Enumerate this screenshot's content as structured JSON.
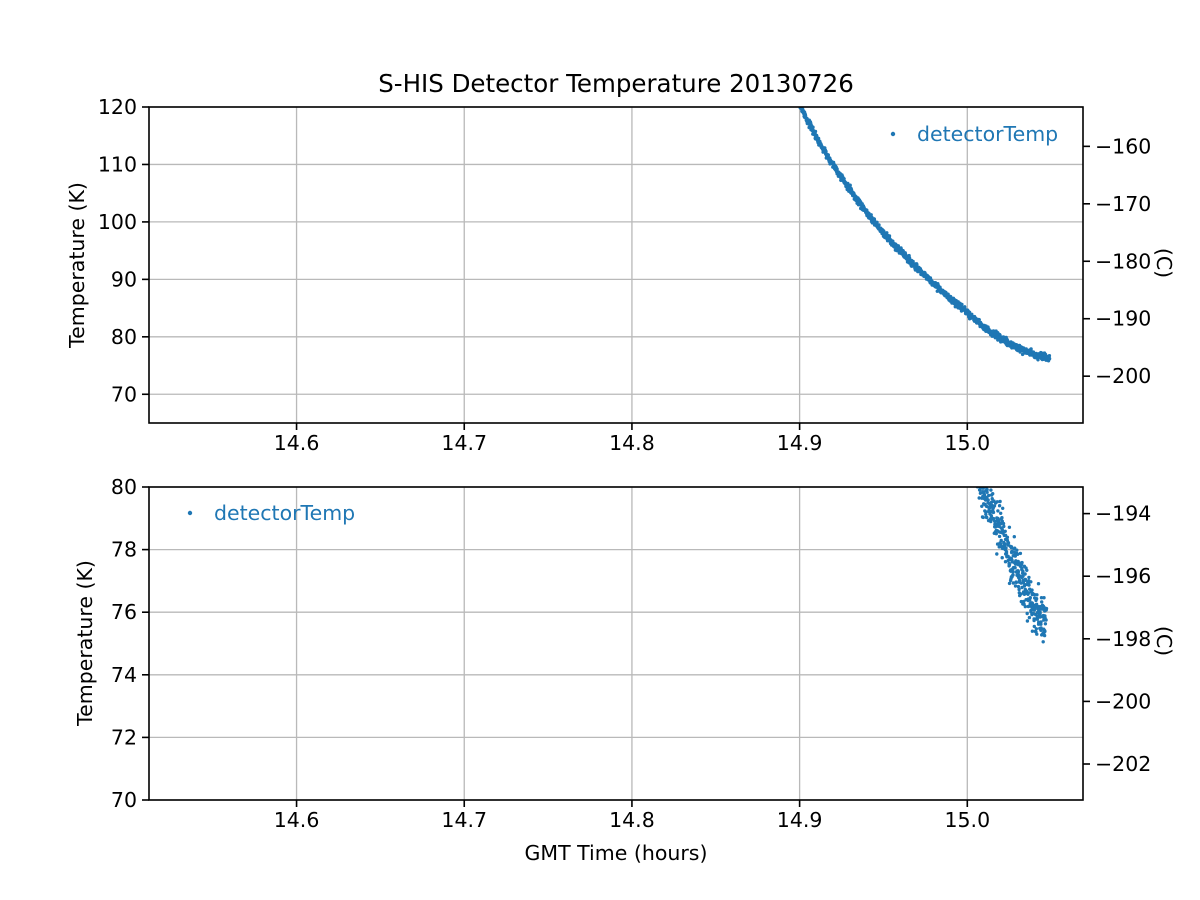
{
  "style": {
    "accent_color": "#1f77b4",
    "grid_color": "#b9b9b9",
    "spine_color": "#000000",
    "text_color": "#000000",
    "background": "#ffffff"
  },
  "chart_data": [
    {
      "type": "scatter",
      "position": "top",
      "title": "S-HIS Detector Temperature 20130726",
      "xlabel": "",
      "ylabel": "Temperature (K)",
      "ylabel_right": "(C)",
      "xlim": [
        14.512,
        15.069
      ],
      "ylim": [
        65,
        120
      ],
      "ylim_right_offset": -273.15,
      "grid": true,
      "xticks": [
        14.6,
        14.7,
        14.8,
        14.9,
        15.0
      ],
      "xtick_labels": [
        "14.6",
        "14.7",
        "14.8",
        "14.9",
        "15.0"
      ],
      "yticks": [
        70,
        80,
        90,
        100,
        110,
        120
      ],
      "ytick_labels": [
        "70",
        "80",
        "90",
        "100",
        "110",
        "120"
      ],
      "yticks_right": [
        -160,
        -170,
        -180,
        -190,
        -200
      ],
      "ytick_right_labels": [
        "−160",
        "−170",
        "−180",
        "−190",
        "−200"
      ],
      "legend": {
        "label": "detectorTemp",
        "loc": "upper right"
      },
      "series": [
        {
          "name": "detectorTemp",
          "color": "#1f77b4",
          "marker": "point",
          "n_points": 1400,
          "noise_k": 0.28,
          "t_range": [
            14.893,
            15.049
          ],
          "trend": [
            [
              14.893,
              124.5
            ],
            [
              14.9,
              120.5
            ],
            [
              14.905,
              117.5
            ],
            [
              14.91,
              114.8
            ],
            [
              14.915,
              112.2
            ],
            [
              14.92,
              110.0
            ],
            [
              14.927,
              106.9
            ],
            [
              14.935,
              103.6
            ],
            [
              14.943,
              100.5
            ],
            [
              14.951,
              97.7
            ],
            [
              14.96,
              95.0
            ],
            [
              14.97,
              92.0
            ],
            [
              14.98,
              89.2
            ],
            [
              14.99,
              86.6
            ],
            [
              15.0,
              84.2
            ],
            [
              15.01,
              81.6
            ],
            [
              15.02,
              79.7
            ],
            [
              15.03,
              78.1
            ],
            [
              15.04,
              76.9
            ],
            [
              15.048,
              76.3
            ]
          ]
        }
      ]
    },
    {
      "type": "scatter",
      "position": "bottom",
      "title": "",
      "xlabel": "GMT Time (hours)",
      "ylabel": "Temperature (K)",
      "ylabel_right": "(C)",
      "xlim": [
        14.512,
        15.069
      ],
      "ylim": [
        70,
        80
      ],
      "ylim_right_offset": -273.15,
      "grid": true,
      "xticks": [
        14.6,
        14.7,
        14.8,
        14.9,
        15.0
      ],
      "xtick_labels": [
        "14.6",
        "14.7",
        "14.8",
        "14.9",
        "15.0"
      ],
      "yticks": [
        70,
        72,
        74,
        76,
        78,
        80
      ],
      "ytick_labels": [
        "70",
        "72",
        "74",
        "76",
        "78",
        "80"
      ],
      "yticks_right": [
        -194,
        -196,
        -198,
        -200,
        -202
      ],
      "ytick_right_labels": [
        "−194",
        "−196",
        "−198",
        "−200",
        "−202"
      ],
      "legend": {
        "label": "detectorTemp",
        "loc": "upper left"
      },
      "series": [
        {
          "name": "detectorTemp",
          "color": "#1f77b4",
          "marker": "point",
          "n_points": 430,
          "noise_k": 0.38,
          "t_range": [
            15.004,
            15.047
          ],
          "trend": [
            [
              15.004,
              80.8
            ],
            [
              15.008,
              80.2
            ],
            [
              15.012,
              79.6
            ],
            [
              15.016,
              79.1
            ],
            [
              15.02,
              78.6
            ],
            [
              15.024,
              78.0
            ],
            [
              15.028,
              77.5
            ],
            [
              15.032,
              77.1
            ],
            [
              15.036,
              76.6
            ],
            [
              15.04,
              76.1
            ],
            [
              15.044,
              75.9
            ],
            [
              15.047,
              75.8
            ]
          ]
        }
      ]
    }
  ]
}
